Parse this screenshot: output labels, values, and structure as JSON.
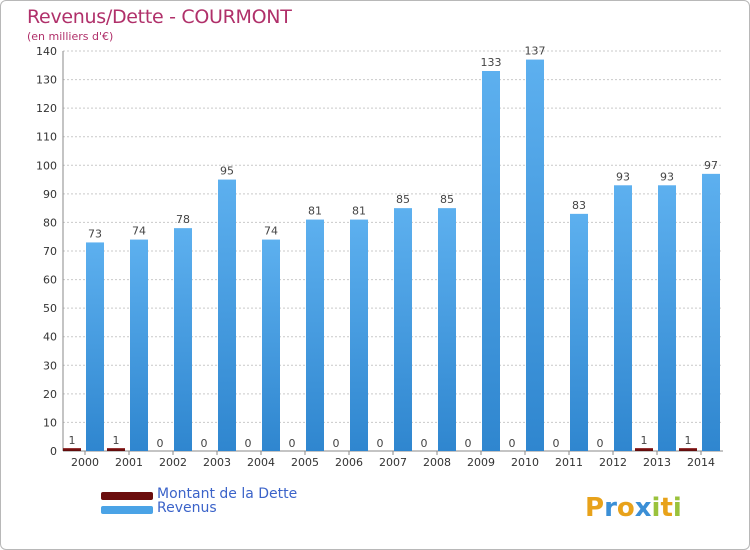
{
  "header": {
    "title": "Revenus/Dette - COURMONT",
    "subtitle": "(en milliers d'€)"
  },
  "legend": {
    "items": [
      {
        "label": "Montant de la Dette",
        "color": "#6b0d0d"
      },
      {
        "label": "Revenus",
        "color": "#4aa3e6"
      }
    ]
  },
  "logo": {
    "text": "Proxiti"
  },
  "chart_data": {
    "type": "bar",
    "title": "Revenus/Dette - COURMONT",
    "subtitle": "(en milliers d'€)",
    "xlabel": "",
    "ylabel": "",
    "categories": [
      "2000",
      "2001",
      "2002",
      "2003",
      "2004",
      "2005",
      "2006",
      "2007",
      "2008",
      "2009",
      "2010",
      "2011",
      "2012",
      "2013",
      "2014"
    ],
    "ylim": [
      0,
      140
    ],
    "yticks": [
      0,
      10,
      20,
      30,
      40,
      50,
      60,
      70,
      80,
      90,
      100,
      110,
      120,
      130,
      140
    ],
    "grid": true,
    "legend_position": "bottom-left",
    "series": [
      {
        "name": "Montant de la Dette",
        "color": "#6b0d0d",
        "values": [
          1,
          1,
          0,
          0,
          0,
          0,
          0,
          0,
          0,
          0,
          0,
          0,
          0,
          1,
          1
        ]
      },
      {
        "name": "Revenus",
        "color": "#4aa3e6",
        "values": [
          73,
          74,
          78,
          95,
          74,
          81,
          81,
          85,
          85,
          133,
          137,
          83,
          93,
          93,
          97
        ]
      }
    ]
  }
}
